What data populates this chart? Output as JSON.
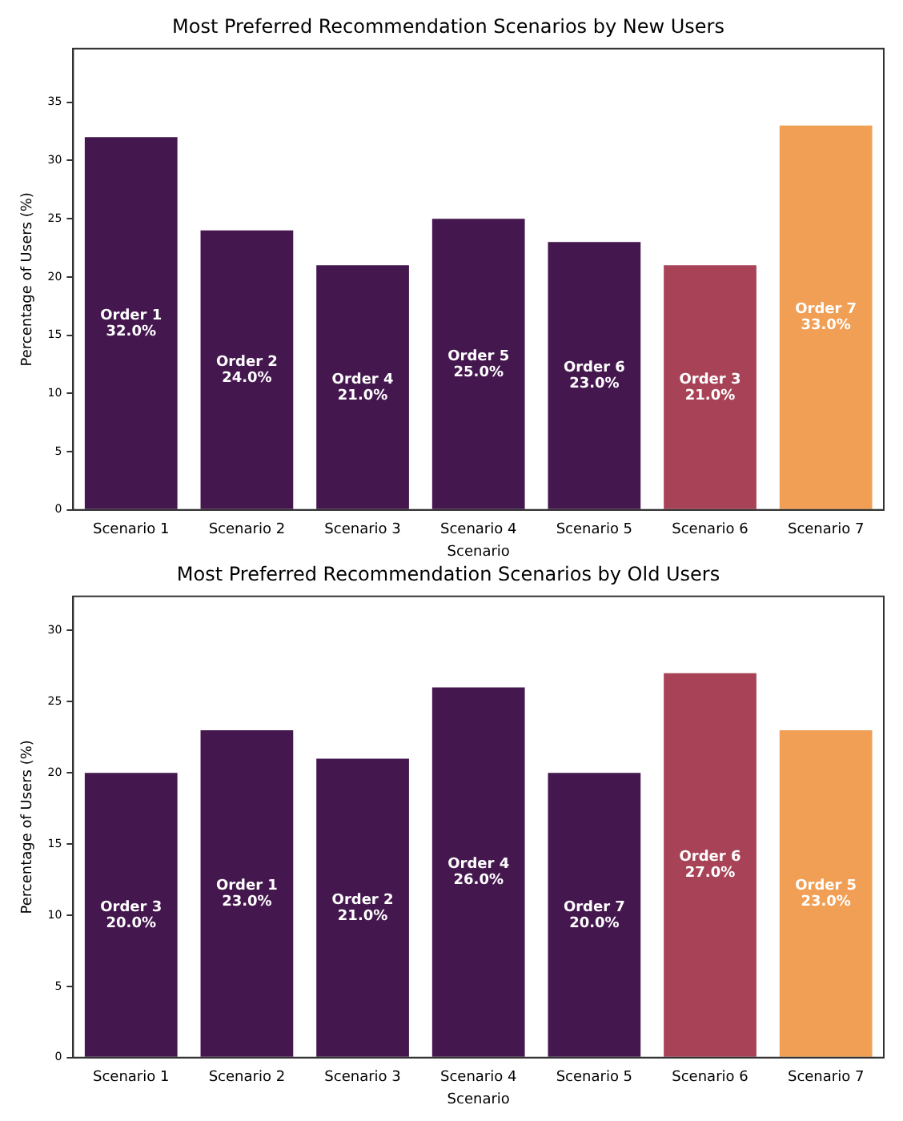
{
  "chart_data": [
    {
      "type": "bar",
      "title": "Most Preferred Recommendation Scenarios by New Users",
      "xlabel": "Scenario",
      "ylabel": "Percentage of Users (%)",
      "categories": [
        "Scenario 1",
        "Scenario 2",
        "Scenario 3",
        "Scenario 4",
        "Scenario 5",
        "Scenario 6",
        "Scenario 7"
      ],
      "values": [
        32,
        24,
        21,
        25,
        23,
        21,
        33
      ],
      "colors": [
        "#44174e",
        "#44174e",
        "#44174e",
        "#44174e",
        "#44174e",
        "#a84357",
        "#f09f55"
      ],
      "value_labels": [
        "Order 1\n32.0%",
        "Order 2\n24.0%",
        "Order 4\n21.0%",
        "Order 5\n25.0%",
        "Order 6\n23.0%",
        "Order 3\n21.0%",
        "Order 7\n33.0%"
      ],
      "ylim": [
        0,
        39.6
      ],
      "yticks": [
        0,
        5,
        10,
        15,
        20,
        25,
        30,
        35
      ],
      "grid": false,
      "legend": false
    },
    {
      "type": "bar",
      "title": "Most Preferred Recommendation Scenarios by Old Users",
      "xlabel": "Scenario",
      "ylabel": "Percentage of Users (%)",
      "categories": [
        "Scenario 1",
        "Scenario 2",
        "Scenario 3",
        "Scenario 4",
        "Scenario 5",
        "Scenario 6",
        "Scenario 7"
      ],
      "values": [
        20,
        23,
        21,
        26,
        20,
        27,
        23
      ],
      "colors": [
        "#44174e",
        "#44174e",
        "#44174e",
        "#44174e",
        "#44174e",
        "#a84357",
        "#f09f55"
      ],
      "value_labels": [
        "Order 3\n20.0%",
        "Order 1\n23.0%",
        "Order 2\n21.0%",
        "Order 4\n26.0%",
        "Order 7\n20.0%",
        "Order 6\n27.0%",
        "Order 5\n23.0%"
      ],
      "ylim": [
        0,
        32.4
      ],
      "yticks": [
        0,
        5,
        10,
        15,
        20,
        25,
        30
      ],
      "grid": false,
      "legend": false
    }
  ]
}
